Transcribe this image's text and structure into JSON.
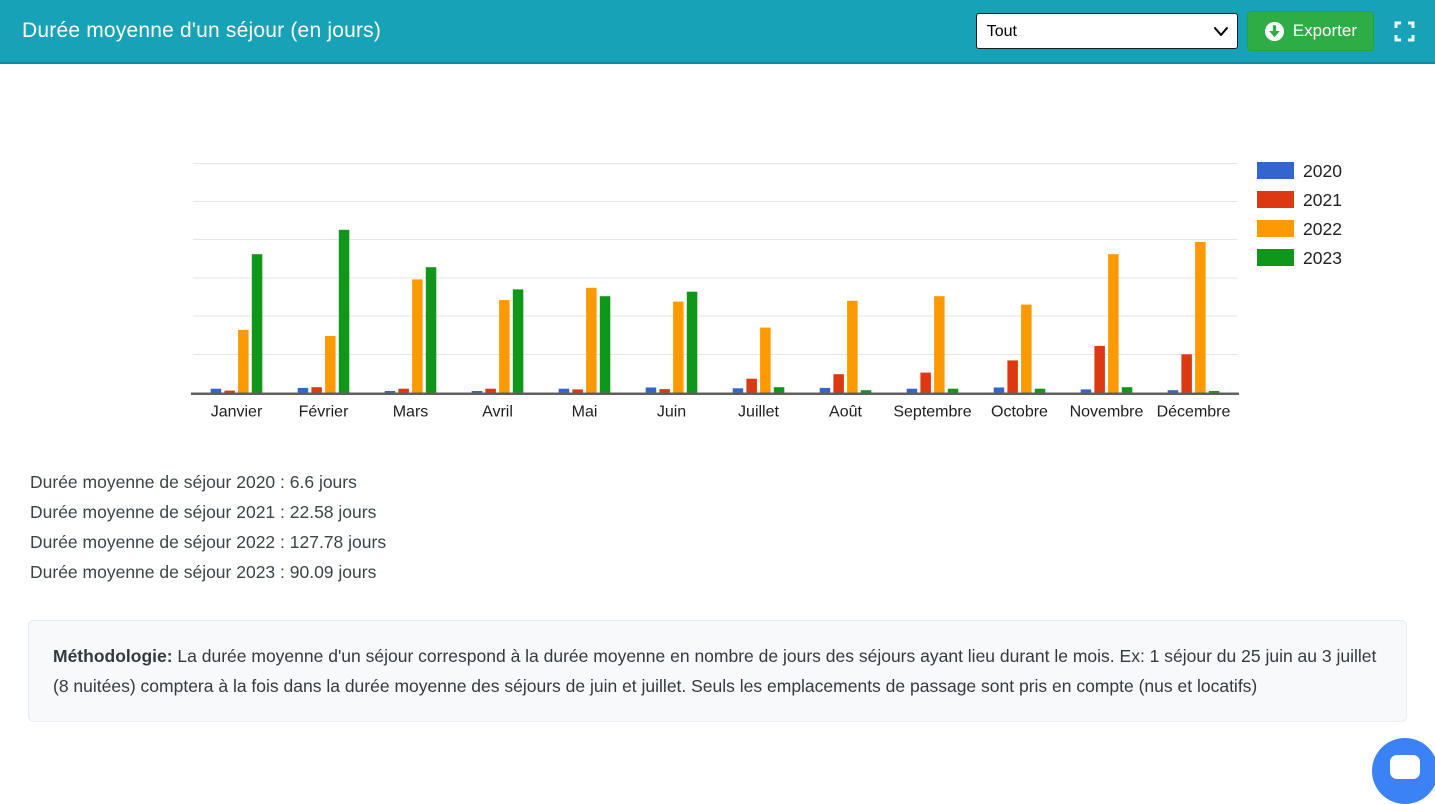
{
  "header": {
    "title": "Durée moyenne d'un séjour (en jours)",
    "filter_value": "Tout",
    "export_label": "Exporter",
    "background_color": "#17a2b8",
    "export_button_color": "#2eac46"
  },
  "chart_data": {
    "type": "bar",
    "title": "Durée moyenne d'un séjour (en jours)",
    "categories": [
      "Janvier",
      "Février",
      "Mars",
      "Avril",
      "Mai",
      "Juin",
      "Juillet",
      "Août",
      "Septembre",
      "Octobre",
      "Novembre",
      "Décembre"
    ],
    "series": [
      {
        "name": "2020",
        "color": "#3366cc",
        "values": [
          5,
          6,
          1.5,
          1.5,
          5,
          6.5,
          5.5,
          6,
          5,
          6.5,
          4,
          3
        ]
      },
      {
        "name": "2021",
        "color": "#dc3912",
        "values": [
          2.5,
          7,
          5,
          5,
          4,
          4.5,
          18,
          24,
          26,
          42,
          61,
          50
        ]
      },
      {
        "name": "2022",
        "color": "#ff9900",
        "values": [
          82,
          74,
          148,
          121,
          137,
          119,
          85,
          120,
          126,
          115,
          181,
          197
        ]
      },
      {
        "name": "2023",
        "color": "#109618",
        "values": [
          181,
          213,
          164,
          135,
          126,
          132,
          7,
          3,
          5,
          5,
          7,
          1.5
        ]
      }
    ],
    "xlabel": "",
    "ylabel": "",
    "ylim": [
      0,
      300
    ],
    "grid_step": 50,
    "grid": true,
    "legend_position": "right",
    "axis_color": "#606060",
    "grid_color": "#e6e6e6",
    "label_color": "#1f1f1f"
  },
  "stats": {
    "lines": [
      "Durée moyenne de séjour 2020 : 6.6 jours",
      "Durée moyenne de séjour 2021 : 22.58 jours",
      "Durée moyenne de séjour 2022 : 127.78 jours",
      "Durée moyenne de séjour 2023 : 90.09 jours"
    ]
  },
  "methodology": {
    "label": "Méthodologie:",
    "text": " La durée moyenne d'un séjour correspond à la durée moyenne en nombre de jours des séjours ayant lieu durant le mois. Ex: 1 séjour du 25 juin au 3 juillet (8 nuitées) comptera à la fois dans la durée moyenne des séjours de juin et juillet. Seuls les emplacements de passage sont pris en compte (nus et locatifs)"
  },
  "chat": {
    "widget_color": "#3b82f6"
  }
}
